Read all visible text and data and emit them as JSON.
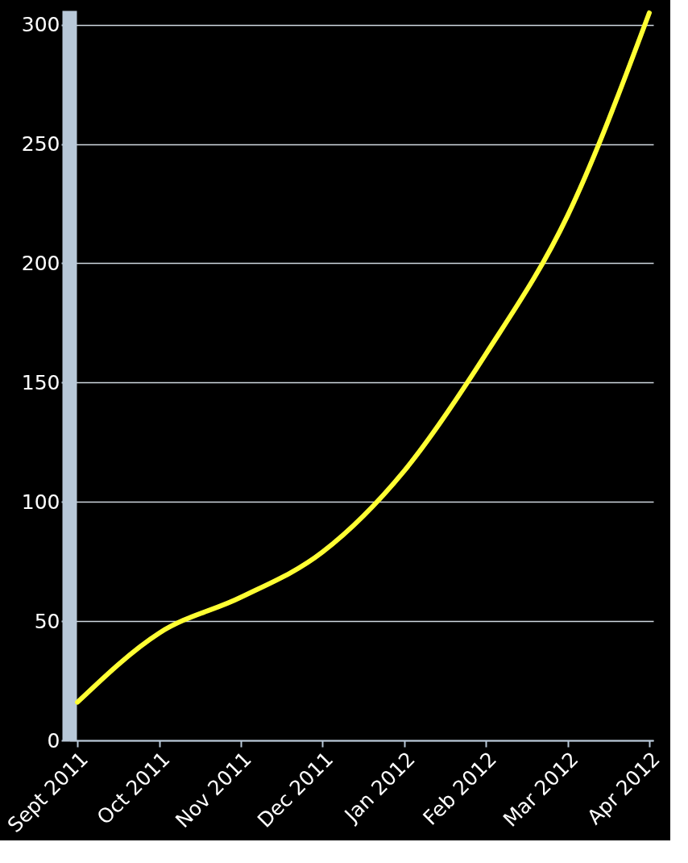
{
  "chart_data": {
    "type": "line",
    "categories": [
      "Sept 2011",
      "Oct 2011",
      "Nov 2011",
      "Dec 2011",
      "Jan 2012",
      "Feb 2012",
      "Mar 2012",
      "Apr 2012"
    ],
    "series": [
      {
        "color": "#ffff33",
        "values": [
          16,
          45,
          60,
          79,
          113,
          162,
          220,
          305
        ]
      }
    ],
    "ylim": [
      0,
      306
    ],
    "yticks": [
      0,
      50,
      100,
      150,
      200,
      250,
      300
    ],
    "grid": "y",
    "marker": "none",
    "line_style": "solid"
  }
}
